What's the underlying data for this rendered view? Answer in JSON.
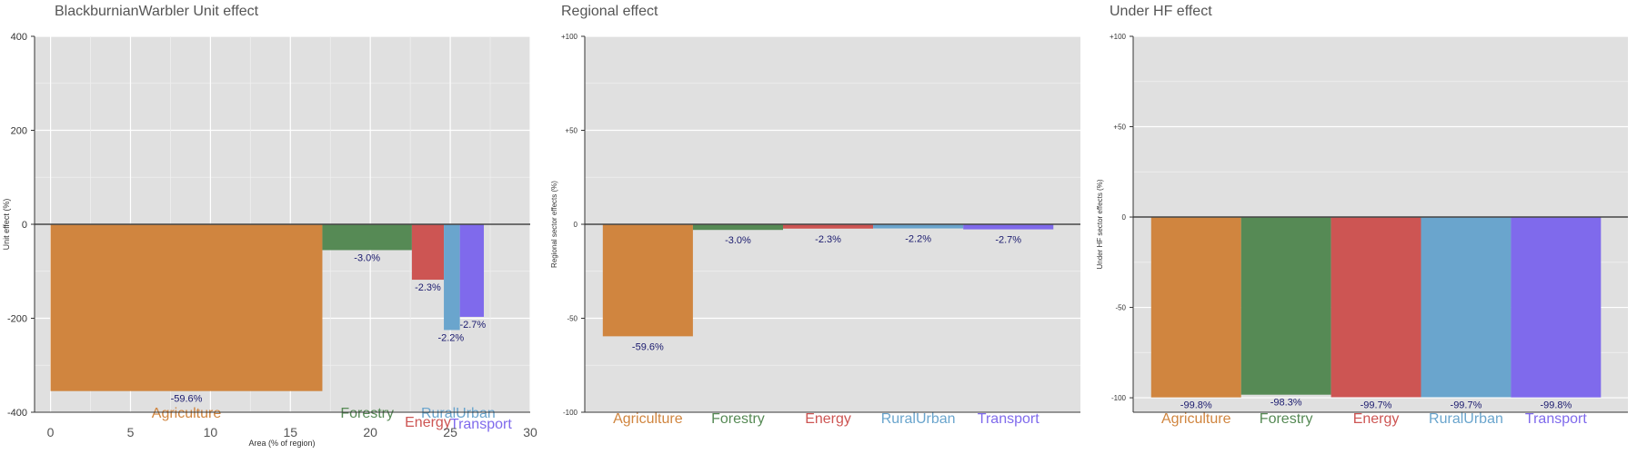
{
  "chart_data": [
    {
      "type": "bar",
      "title": "BlackburnianWarbler Unit effect",
      "xlabel": "Area (% of region)",
      "ylabel": "Unit effect (%)",
      "xlim": [
        -1,
        30
      ],
      "ylim": [
        -400,
        400
      ],
      "xticks": [
        "0",
        "5",
        "10",
        "15",
        "20",
        "25",
        "30"
      ],
      "yticks": [
        "400",
        "200",
        "0",
        "-200",
        "-400"
      ],
      "grid": true,
      "bars": [
        {
          "name": "Agriculture",
          "x0": 0,
          "x1": 17,
          "value": -355,
          "label": "-59.6%",
          "color": "#D0853F"
        },
        {
          "name": "Forestry",
          "x0": 17,
          "x1": 22.6,
          "value": -55,
          "label": "-3.0%",
          "color": "#568A55"
        },
        {
          "name": "Energy",
          "x0": 22.6,
          "x1": 24.6,
          "value": -118,
          "label": "-2.3%",
          "color": "#CD5553"
        },
        {
          "name": "RuralUrban",
          "x0": 24.6,
          "x1": 25.6,
          "value": -225,
          "label": "-2.2%",
          "color": "#6AA5CD"
        },
        {
          "name": "Transport",
          "x0": 25.6,
          "x1": 27.1,
          "value": -197,
          "label": "-2.7%",
          "color": "#7F6AEC"
        }
      ]
    },
    {
      "type": "bar",
      "title": "Regional effect",
      "ylabel": "Regional sector effects (%)",
      "ylim": [
        -100,
        100
      ],
      "yticks": [
        "+100",
        "+50",
        "0",
        "-50",
        "-100"
      ],
      "grid": true,
      "categories": [
        "Agriculture",
        "Forestry",
        "Energy",
        "RuralUrban",
        "Transport"
      ],
      "values": [
        -59.6,
        -3.0,
        -2.3,
        -2.2,
        -2.7
      ],
      "labels": [
        "-59.6%",
        "-3.0%",
        "-2.3%",
        "-2.2%",
        "-2.7%"
      ],
      "colors": [
        "#D0853F",
        "#568A55",
        "#CD5553",
        "#6AA5CD",
        "#7F6AEC"
      ]
    },
    {
      "type": "bar",
      "title": "Under HF effect",
      "ylabel": "Under HF sector effects (%)",
      "ylim": [
        -108,
        100
      ],
      "yticks": [
        "+100",
        "+50",
        "0",
        "-50",
        "-100"
      ],
      "grid": true,
      "categories": [
        "Agriculture",
        "Forestry",
        "Energy",
        "RuralUrban",
        "Transport"
      ],
      "values": [
        -99.8,
        -98.3,
        -99.7,
        -99.7,
        -99.8
      ],
      "labels": [
        "-99.8%",
        "-98.3%",
        "-99.7%",
        "-99.7%",
        "-99.8%"
      ],
      "colors": [
        "#D0853F",
        "#568A55",
        "#CD5553",
        "#6AA5CD",
        "#7F6AEC"
      ]
    }
  ]
}
